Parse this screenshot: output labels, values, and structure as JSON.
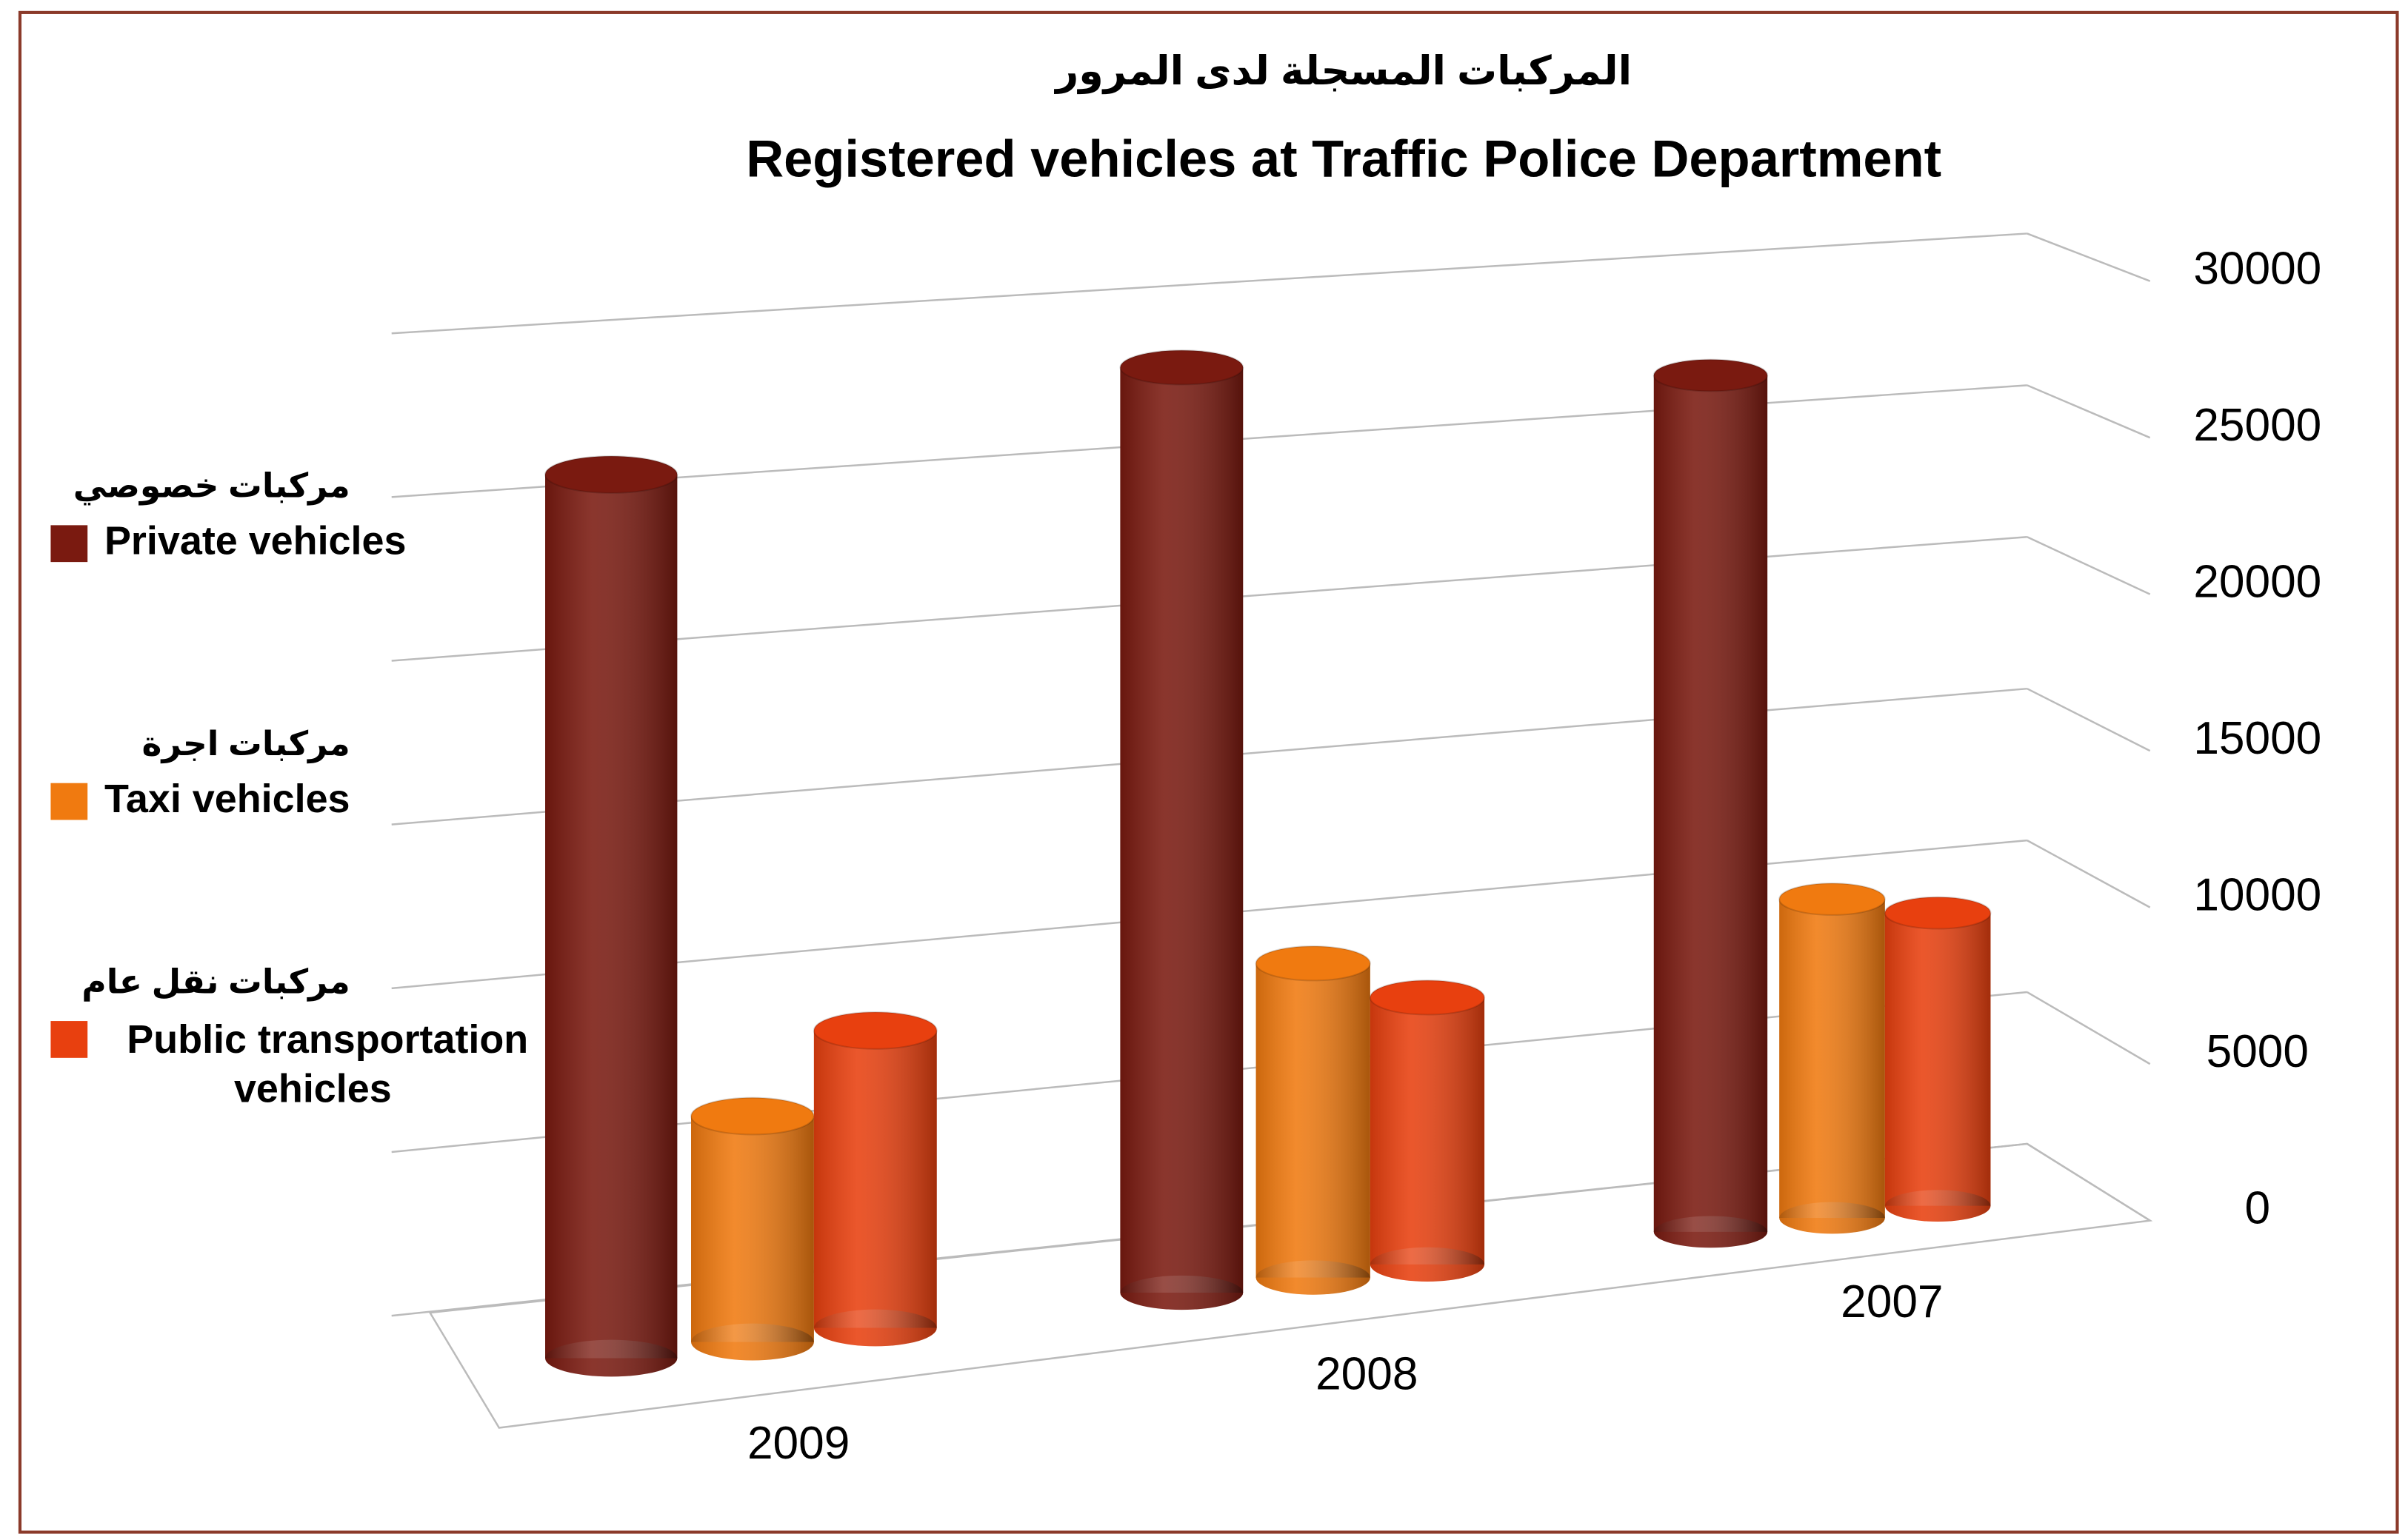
{
  "chart_data": {
    "type": "bar3d",
    "title_ar": "المركبات المسجلة لدى المرور",
    "title": "Registered vehicles at Traffic Police Department",
    "categories": [
      "2009",
      "2008",
      "2007"
    ],
    "series": [
      {
        "name": "Private vehicles",
        "label_ar": "مركبات خصوصي",
        "color": "#7a1a10",
        "values": [
          24300,
          27000,
          26500
        ]
      },
      {
        "name": "Taxi vehicles",
        "label_ar": "مركبات اجرة",
        "color": "#f07a10",
        "values": [
          6300,
          9300,
          10000
        ]
      },
      {
        "name": "Public transportation vehicles",
        "label_ar": "مركبات نقل عام",
        "color": "#e8400f",
        "values": [
          8400,
          8000,
          9300
        ]
      }
    ],
    "ylim": [
      0,
      30000
    ],
    "yticks": [
      0,
      5000,
      10000,
      15000,
      20000,
      25000,
      30000
    ],
    "grid": true
  }
}
